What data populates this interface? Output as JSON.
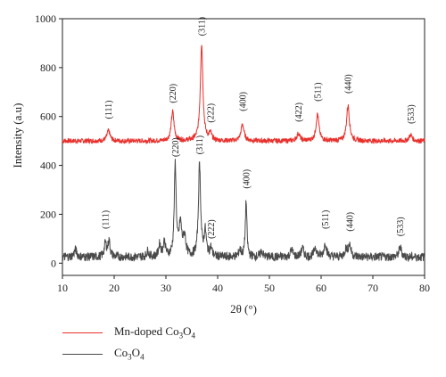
{
  "chart_data": {
    "type": "line",
    "xlabel": "2θ (°)",
    "ylabel": "Intensity (a.u)",
    "xlim": [
      10,
      80
    ],
    "ylim": [
      -50,
      1000
    ],
    "xticks": [
      10,
      20,
      30,
      40,
      50,
      60,
      70,
      80
    ],
    "yticks": [
      0,
      200,
      400,
      600,
      800,
      1000
    ],
    "legend_position": "bottom-left, below plot",
    "series": [
      {
        "name": "Mn-doped Co3O4",
        "legend_base": "Mn-doped Co",
        "legend_sub1": "3",
        "legend_mid": "O",
        "legend_sub2": "4",
        "color": "#e8302c",
        "baseline": 500,
        "noise": 10,
        "peaks": [
          {
            "x": 18.9,
            "height": 42,
            "width": 0.35,
            "label": "(111)",
            "label_y": 590
          },
          {
            "x": 31.3,
            "height": 120,
            "width": 0.32,
            "label": "(220)",
            "label_y": 655
          },
          {
            "x": 36.9,
            "height": 395,
            "width": 0.3,
            "label": "(311)",
            "label_y": 930
          },
          {
            "x": 38.6,
            "height": 28,
            "width": 0.3,
            "label": "(222)",
            "label_y": 575
          },
          {
            "x": 44.8,
            "height": 68,
            "width": 0.35,
            "label": "(400)",
            "label_y": 622
          },
          {
            "x": 55.6,
            "height": 30,
            "width": 0.35,
            "label": "(422)",
            "label_y": 578
          },
          {
            "x": 59.3,
            "height": 110,
            "width": 0.33,
            "label": "(511)",
            "label_y": 662
          },
          {
            "x": 65.2,
            "height": 145,
            "width": 0.33,
            "label": "(440)",
            "label_y": 694
          },
          {
            "x": 77.3,
            "height": 25,
            "width": 0.35,
            "label": "(533)",
            "label_y": 570
          }
        ]
      },
      {
        "name": "Co3O4",
        "legend_base": "Co",
        "legend_sub1": "3",
        "legend_mid": "O",
        "legend_sub2": "4",
        "color": "#4a4a4a",
        "baseline": 25,
        "noise": 18,
        "peaks": [
          {
            "x": 12.5,
            "height": 30,
            "width": 0.3
          },
          {
            "x": 18.3,
            "height": 55,
            "width": 0.25,
            "label": "(111)",
            "label_y": 140
          },
          {
            "x": 19.0,
            "height": 65,
            "width": 0.25
          },
          {
            "x": 26.5,
            "height": 25,
            "width": 0.25
          },
          {
            "x": 28.8,
            "height": 50,
            "width": 0.25
          },
          {
            "x": 29.7,
            "height": 60,
            "width": 0.25
          },
          {
            "x": 31.8,
            "height": 375,
            "width": 0.22,
            "label": "(220)",
            "label_y": 435
          },
          {
            "x": 32.8,
            "height": 130,
            "width": 0.3
          },
          {
            "x": 33.6,
            "height": 80,
            "width": 0.3
          },
          {
            "x": 36.5,
            "height": 380,
            "width": 0.25,
            "label": "(311)",
            "label_y": 445
          },
          {
            "x": 37.6,
            "height": 100,
            "width": 0.25
          },
          {
            "x": 38.7,
            "height": 35,
            "width": 0.25,
            "label": "(222)",
            "label_y": 100
          },
          {
            "x": 44.3,
            "height": 30,
            "width": 0.25
          },
          {
            "x": 45.5,
            "height": 230,
            "width": 0.18,
            "label": "(400)",
            "label_y": 305
          },
          {
            "x": 48.5,
            "height": 25,
            "width": 0.25
          },
          {
            "x": 54.3,
            "height": 30,
            "width": 0.3
          },
          {
            "x": 56.4,
            "height": 35,
            "width": 0.3
          },
          {
            "x": 58.9,
            "height": 40,
            "width": 0.3
          },
          {
            "x": 60.8,
            "height": 55,
            "width": 0.3,
            "label": "(511)",
            "label_y": 140
          },
          {
            "x": 64.8,
            "height": 30,
            "width": 0.3
          },
          {
            "x": 65.5,
            "height": 50,
            "width": 0.3,
            "label": "(440)",
            "label_y": 130
          },
          {
            "x": 75.3,
            "height": 40,
            "width": 0.3,
            "label": "(533)",
            "label_y": 110
          }
        ]
      }
    ]
  }
}
